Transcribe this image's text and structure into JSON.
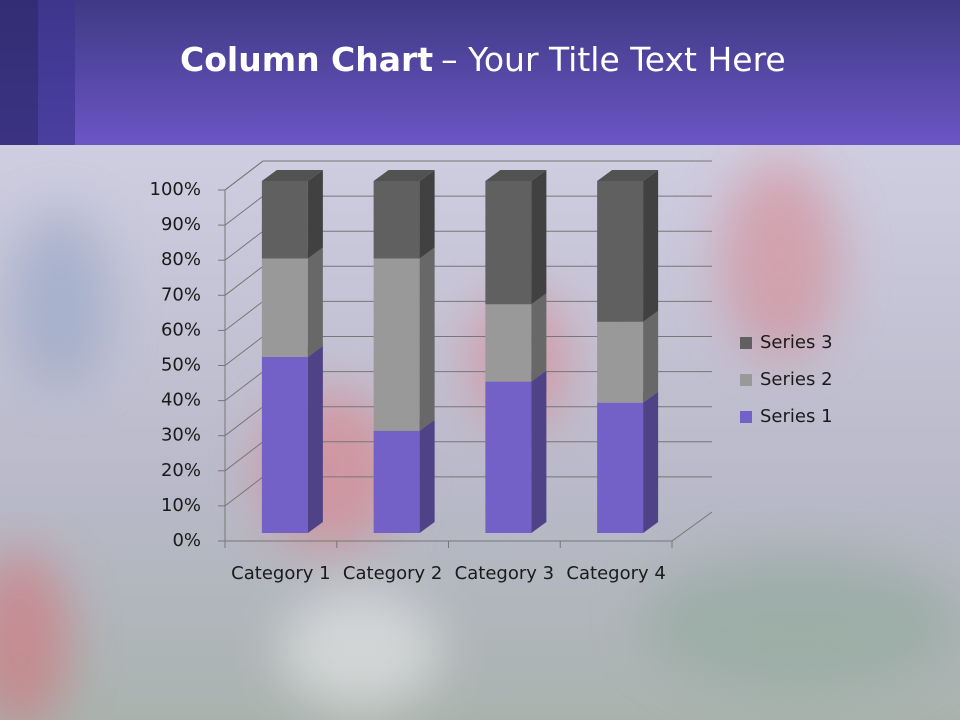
{
  "chart_data": {
    "type": "bar",
    "stacked": true,
    "title_parts": [
      "Column Chart",
      "– Your Title Text Here"
    ],
    "categories": [
      "Category 1",
      "Category 2",
      "Category 3",
      "Category 4"
    ],
    "series": [
      {
        "name": "Series 1",
        "color": "#7461c7",
        "values": [
          50,
          29,
          43,
          37
        ]
      },
      {
        "name": "Series 2",
        "color": "#999999",
        "values": [
          28,
          49,
          22,
          23
        ]
      },
      {
        "name": "Series 3",
        "color": "#606060",
        "values": [
          22,
          22,
          35,
          40
        ]
      }
    ],
    "ylim": [
      0,
      100
    ],
    "yticks": [
      {
        "value": 0,
        "label": "0%"
      },
      {
        "value": 10,
        "label": "10%"
      },
      {
        "value": 20,
        "label": "20%"
      },
      {
        "value": 30,
        "label": "30%"
      },
      {
        "value": 40,
        "label": "40%"
      },
      {
        "value": 50,
        "label": "50%"
      },
      {
        "value": 60,
        "label": "60%"
      },
      {
        "value": 70,
        "label": "70%"
      },
      {
        "value": 80,
        "label": "80%"
      },
      {
        "value": 90,
        "label": "90%"
      },
      {
        "value": 100,
        "label": "100%"
      }
    ],
    "grid": true,
    "legend": "right"
  }
}
